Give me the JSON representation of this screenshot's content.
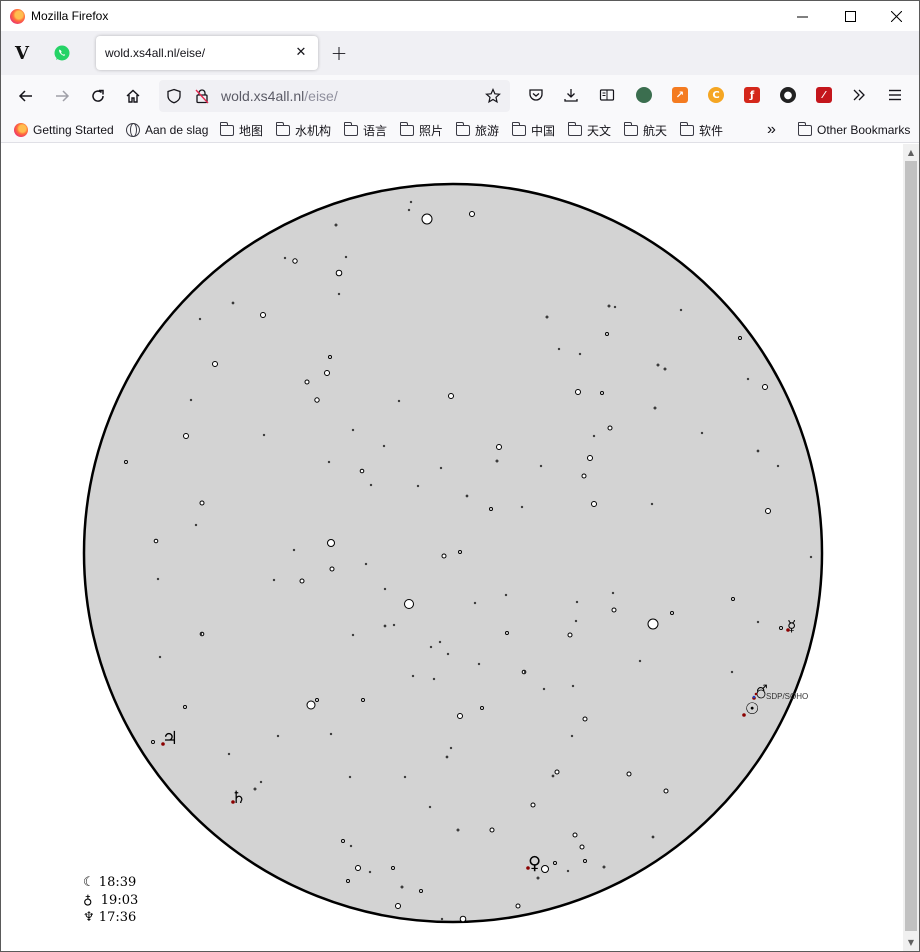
{
  "window": {
    "title": "Mozilla Firefox",
    "controls": {
      "minimize": "—",
      "maximize": "☐",
      "close": "✕"
    }
  },
  "tabs": {
    "pinned": [
      {
        "name": "vivino",
        "glyph": "V"
      },
      {
        "name": "whatsapp",
        "glyph": ""
      }
    ],
    "active": {
      "title": "wold.xs4all.nl/eise/",
      "close": "✕"
    },
    "new_tab": "+"
  },
  "navbar": {
    "url_host": "wold.xs4all.nl",
    "url_path": "/eise/",
    "icons": [
      "back-icon",
      "forward-icon",
      "reload-icon",
      "home-icon",
      "shield-icon",
      "insecure-lock-icon",
      "star-icon",
      "pocket-icon",
      "download-icon",
      "reader-icon",
      "extensions",
      "overflow-icon",
      "menu-icon"
    ]
  },
  "bookmarks": [
    {
      "label": "Getting Started",
      "icon": "firefox-icon"
    },
    {
      "label": "Aan de slag",
      "icon": "globe-icon"
    },
    {
      "label": "地图",
      "icon": "folder-icon"
    },
    {
      "label": "水机构",
      "icon": "folder-icon"
    },
    {
      "label": "语言",
      "icon": "folder-icon"
    },
    {
      "label": "照片",
      "icon": "folder-icon"
    },
    {
      "label": "旅游",
      "icon": "folder-icon"
    },
    {
      "label": "中国",
      "icon": "folder-icon"
    },
    {
      "label": "天文",
      "icon": "folder-icon"
    },
    {
      "label": "航天",
      "icon": "folder-icon"
    },
    {
      "label": "软件",
      "icon": "folder-icon"
    }
  ],
  "bookmarks_overflow": "»",
  "other_bookmarks": "Other Bookmarks",
  "sky": {
    "colors": {
      "sky": "#d3d3d3",
      "horizon": "#000000",
      "planet_marker": "#8b0000"
    },
    "planets": [
      {
        "name": "mercury",
        "symbol": "☿"
      },
      {
        "name": "mars",
        "symbol": "♂"
      },
      {
        "name": "sun",
        "symbol": "☉"
      },
      {
        "name": "jupiter",
        "symbol": "♃"
      },
      {
        "name": "saturn",
        "symbol": "♄"
      },
      {
        "name": "venus",
        "symbol": "♀"
      }
    ],
    "soho_label": "SDP/SOHO",
    "rise_times": [
      {
        "symbol": "☾",
        "time": "18:39"
      },
      {
        "symbol": "♁",
        "time": "19:03"
      },
      {
        "symbol": "♆",
        "time": "17:36"
      }
    ]
  }
}
